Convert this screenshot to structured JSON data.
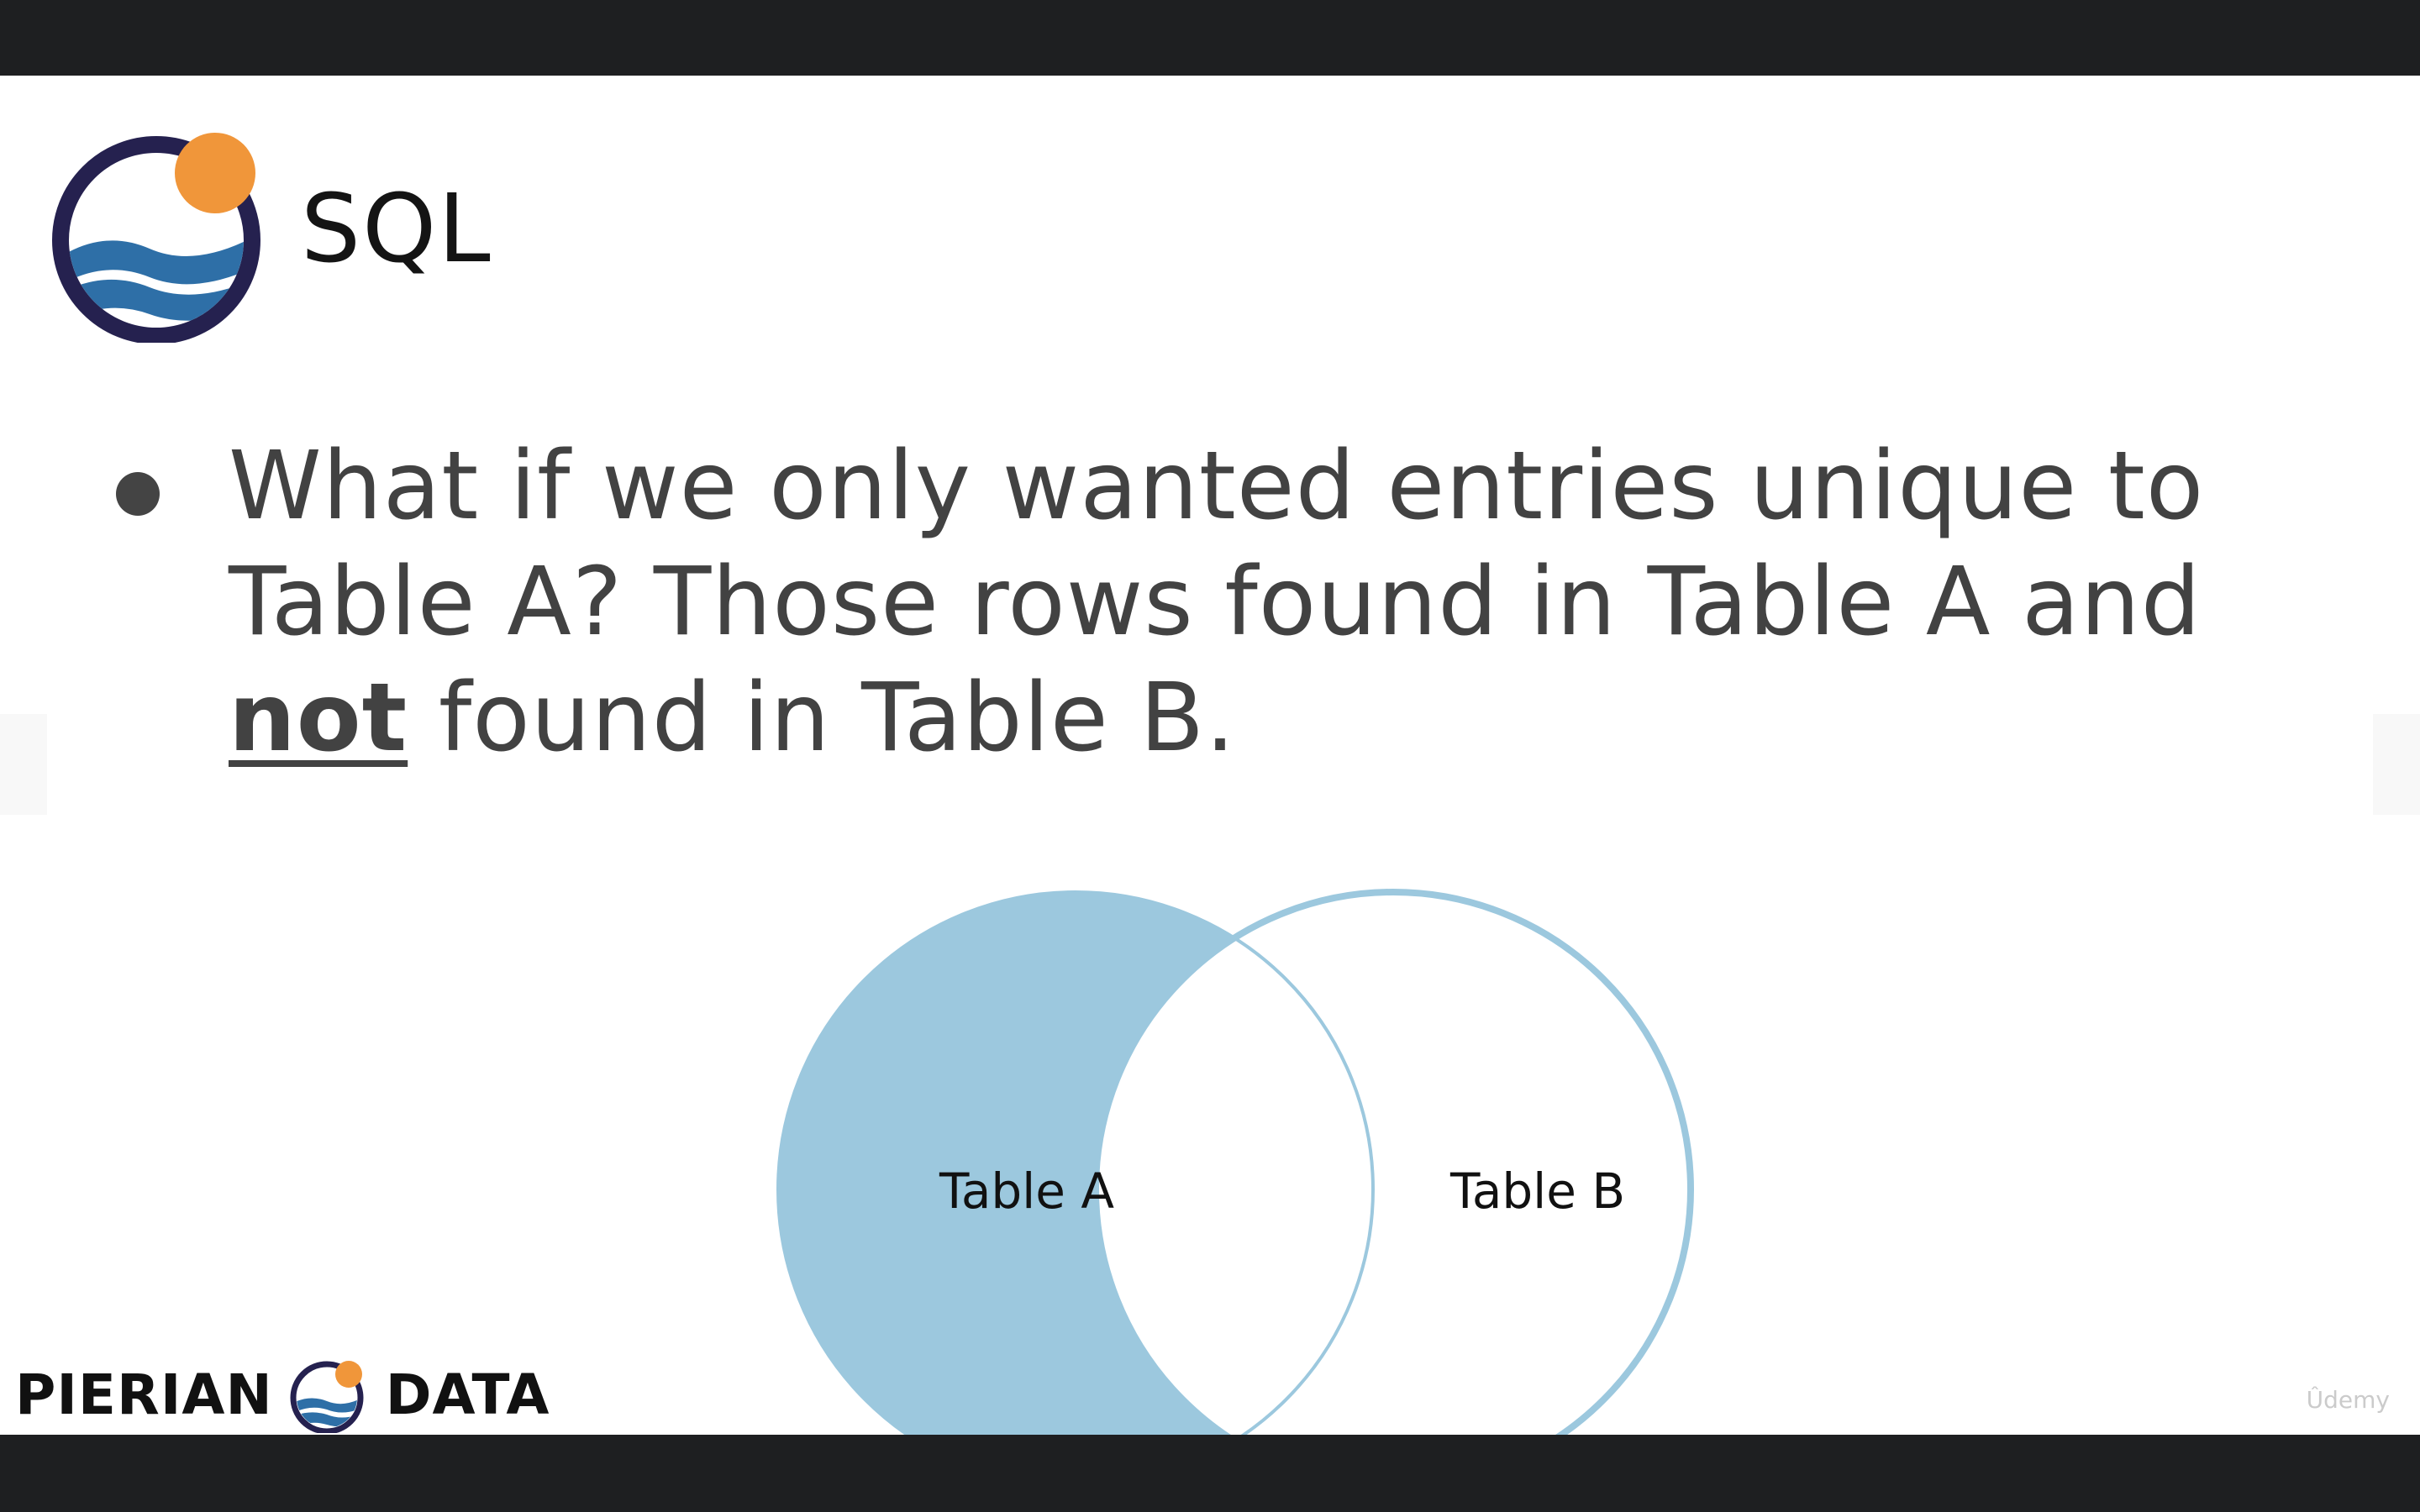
{
  "slide": {
    "title": "SQL",
    "bullet_lines": [
      "What if we only wanted entries unique to",
      "Table A? Those rows found in Table A and"
    ],
    "bullet_emphasis": "not",
    "bullet_tail": " found in Table B.",
    "venn": {
      "left_label": "Table A",
      "right_label": "Table B",
      "fill_color": "#9cc8de",
      "stroke_color": "#9cc8de"
    }
  },
  "footer": {
    "brand_left": "PIERIAN",
    "brand_right": "DATA"
  },
  "watermark": "Ûdemy",
  "colors": {
    "logo_ring": "#25214f",
    "logo_sun": "#f0963a",
    "logo_wave": "#2e6fa7",
    "frame": "#1e1f21"
  }
}
